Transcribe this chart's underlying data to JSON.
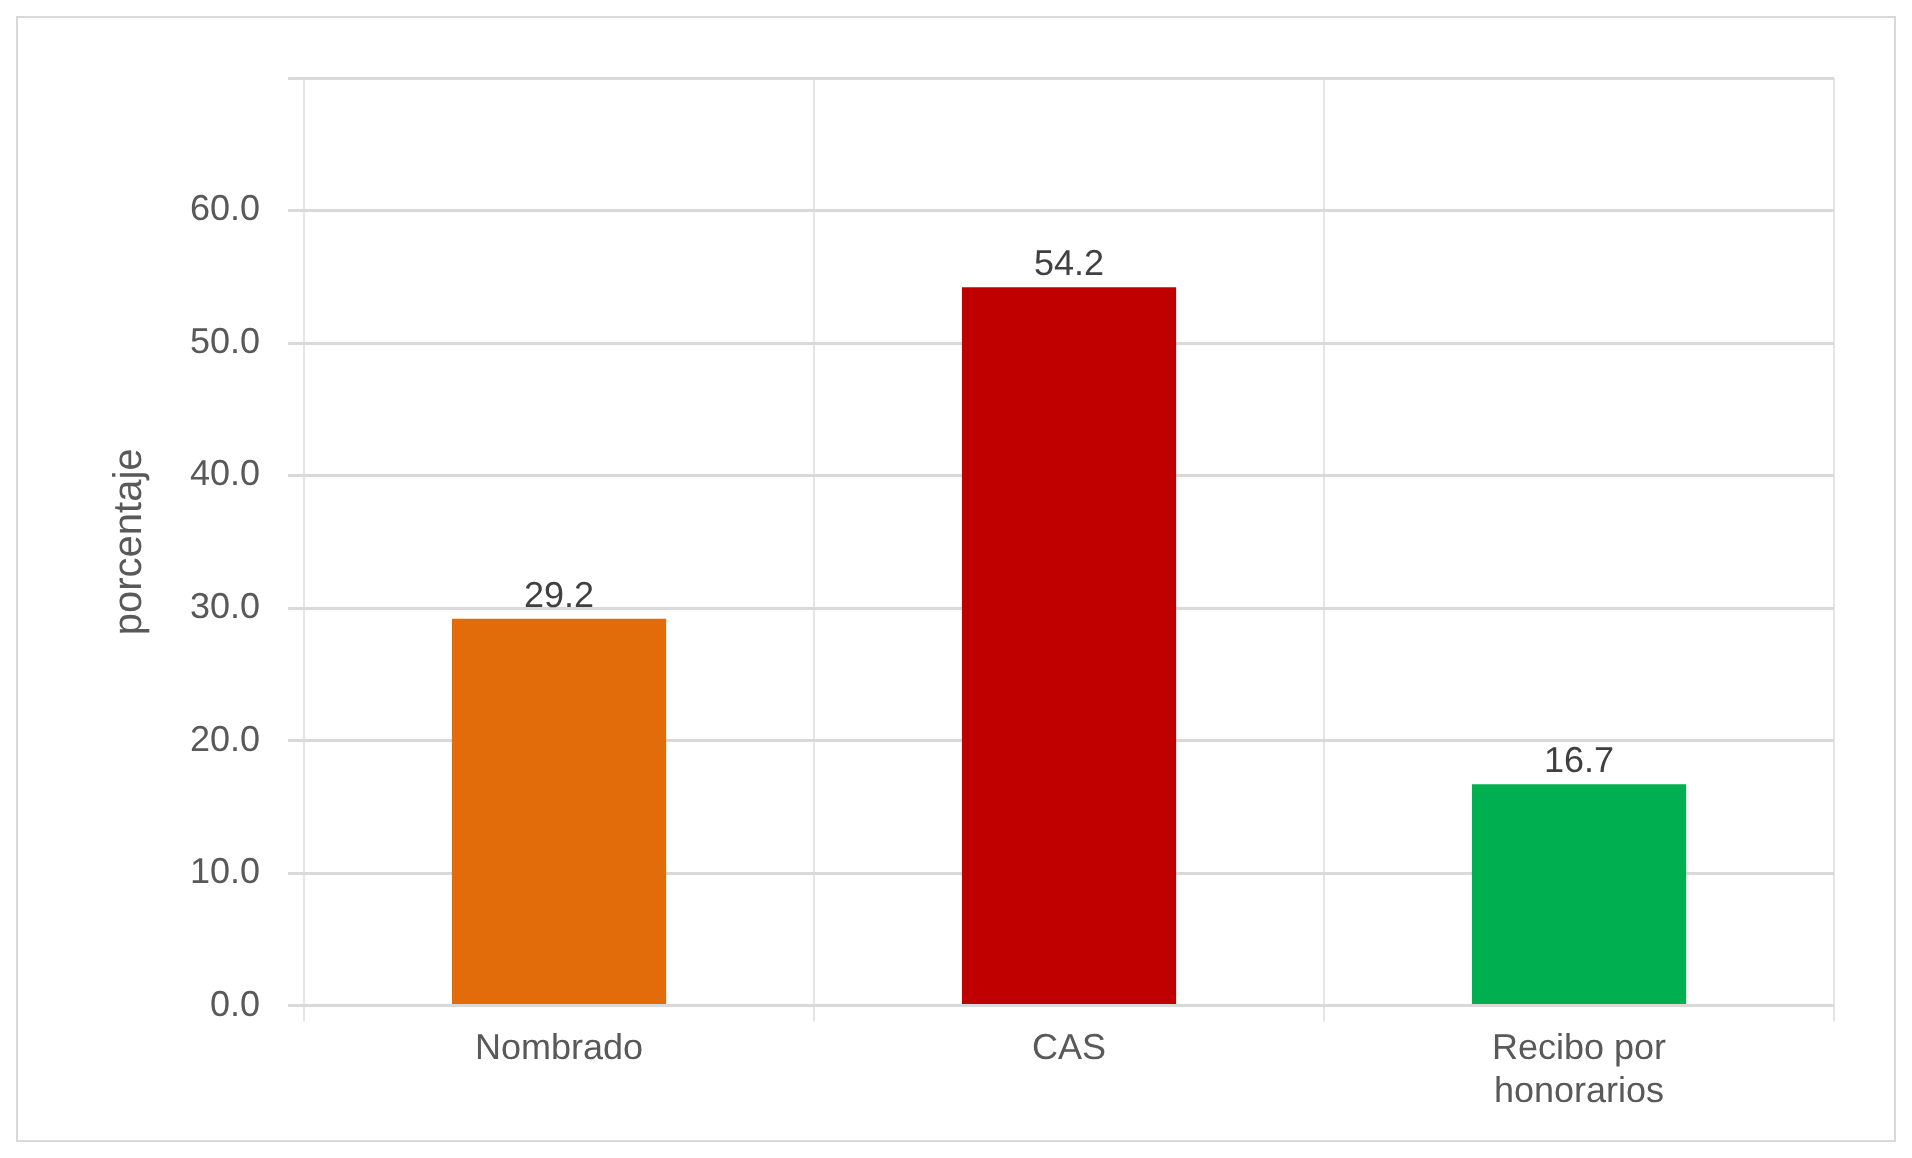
{
  "chart_data": {
    "type": "bar",
    "ylabel": "porcentaje",
    "categories": [
      "Nombrado",
      "CAS",
      "Recibo por honorarios"
    ],
    "values": [
      29.2,
      54.2,
      16.7
    ],
    "colors": [
      "#e36c0a",
      "#c00000",
      "#00b050"
    ],
    "ylim": [
      0,
      70
    ],
    "yticks": [
      {
        "value": 0,
        "label": "0.0"
      },
      {
        "value": 10,
        "label": "10.0"
      },
      {
        "value": 20,
        "label": "20.0"
      },
      {
        "value": 30,
        "label": "30.0"
      },
      {
        "value": 40,
        "label": "40.0"
      },
      {
        "value": 50,
        "label": "50.0"
      },
      {
        "value": 60,
        "label": "60.0"
      },
      {
        "value": 70,
        "label": null
      }
    ],
    "grid": true,
    "data_labels": true
  }
}
